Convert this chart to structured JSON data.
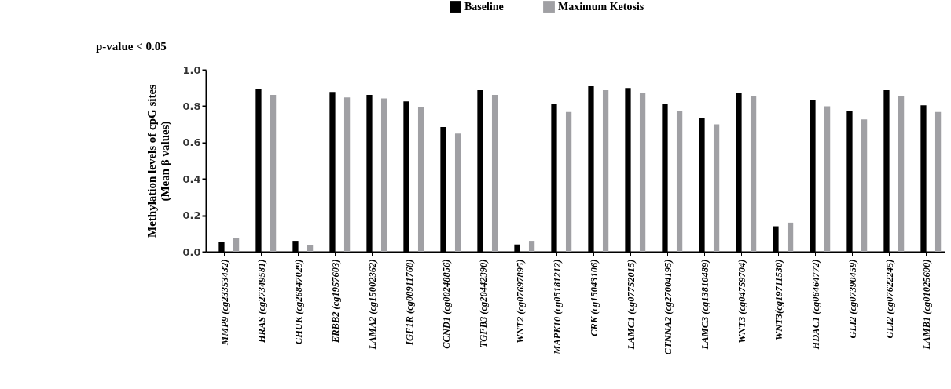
{
  "chart_data": {
    "type": "bar",
    "ylabel": "Methylation levels of cpG sites\n(Mean β values)",
    "annotations": [
      "p-value < 0.05"
    ],
    "categories": [
      "MMP9 (cg23353432)",
      "HRAS (cg27349581)",
      "CHUK (cg26847029)",
      "ERBB2 (cg1957603)",
      "LAMA2 (cg15002362)",
      "IGF1R (cg08911768)",
      "CCND1 (cg00248856)",
      "TGFB3 (cg20442390)",
      "WNT2 (cg07697895)",
      "MAPK10 (cg05181212)",
      "CRK (cg15043106)",
      "LAMC1 (cg07752015)",
      "CTNNA2 (cg27004195)",
      "LAMC3 (cg13810489)",
      "WNT3 (cg04759704)",
      "WNT3(cg19711530)",
      "HDAC1 (cg06464772)",
      "GLI2 (cg07390459)",
      "GLI2 (cg07622245)",
      "LAMB1 (cg01025690)"
    ],
    "series": [
      {
        "name": "Baseline",
        "color": "#000000",
        "values": [
          0.055,
          0.895,
          0.06,
          0.878,
          0.862,
          0.826,
          0.685,
          0.888,
          0.04,
          0.81,
          0.91,
          0.9,
          0.81,
          0.737,
          0.873,
          0.14,
          0.832,
          0.775,
          0.888,
          0.805
        ]
      },
      {
        "name": "Maximum Ketosis",
        "color": "#a0a0a4",
        "values": [
          0.075,
          0.862,
          0.035,
          0.848,
          0.843,
          0.795,
          0.65,
          0.862,
          0.06,
          0.768,
          0.888,
          0.872,
          0.775,
          0.7,
          0.853,
          0.16,
          0.8,
          0.727,
          0.858,
          0.768
        ]
      }
    ],
    "ylim": [
      0,
      1.0
    ],
    "yticks": [
      {
        "value": 0,
        "label": "0.0"
      },
      {
        "value": 0.2,
        "label": "0.2"
      },
      {
        "value": 0.4,
        "label": "0.4"
      },
      {
        "value": 0.6,
        "label": "0.6"
      },
      {
        "value": 0.8,
        "label": "0.8"
      },
      {
        "value": 1,
        "label": "1.0"
      }
    ],
    "grid": false,
    "legend": "top"
  }
}
